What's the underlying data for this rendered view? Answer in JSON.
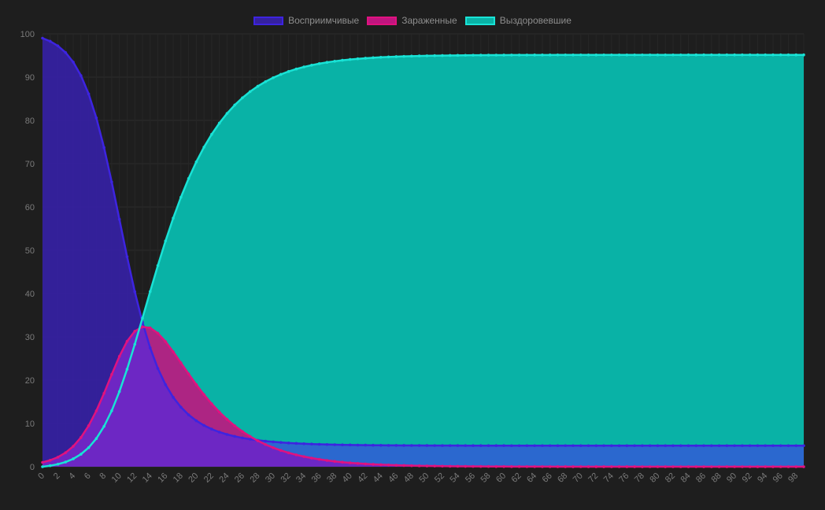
{
  "chart_data": {
    "type": "area",
    "title": "",
    "xlabel": "",
    "ylabel": "",
    "ylim": [
      0,
      100
    ],
    "xlim": [
      0,
      99
    ],
    "y_ticks": [
      "0",
      "10",
      "20",
      "30",
      "40",
      "50",
      "60",
      "70",
      "80",
      "90",
      "100"
    ],
    "x_tick_step": 2,
    "grid": true,
    "legend_position": "top-center",
    "series": [
      {
        "name": "Восприимчивые",
        "line_color": "#3d24e0",
        "fill_color": "#3521a0",
        "peak_x": 0,
        "peak_y": 99.5,
        "final_y": 4.2
      },
      {
        "name": "Зараженные",
        "line_color": "#e0127f",
        "fill_color": "#c0157f",
        "start_y": 1,
        "peak_x": 12,
        "peak_y": 34,
        "final_y": 0
      },
      {
        "name": "Выздоровевшие",
        "line_color": "#19e3d6",
        "fill_color": "#09b2a6",
        "start_y": 0,
        "mid_x": 12,
        "mid_y": 33,
        "final_y": 96.5
      }
    ],
    "overlap_fill_color": "#6129cf",
    "susceptible_tail_fill_color": "#2a6fd4"
  }
}
